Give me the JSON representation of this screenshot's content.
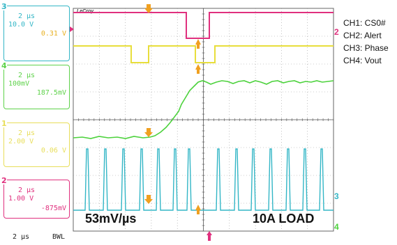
{
  "channels": {
    "ch3": {
      "num": "3",
      "time": "2 µs",
      "volts": "10.0 V",
      "offset": "0.31 V"
    },
    "ch4": {
      "num": "4",
      "time": "2 µs",
      "volts": "100mV",
      "offset": "187.5mV"
    },
    "ch1": {
      "num": "1",
      "time": "2 µs",
      "volts": "2.00 V",
      "offset": "0.06 V"
    },
    "ch2": {
      "num": "2",
      "time": "2 µs",
      "volts": "1.00 V",
      "offset": "-875mV"
    }
  },
  "timebase": "2 µs",
  "bandwidth": "BWL",
  "brand": "LeCroy",
  "legend": [
    "CH1: CS0#",
    "CH2: Alert",
    "CH3: Phase",
    "CH4: Vout"
  ],
  "annotations": {
    "slew": "53mV/µs",
    "load": "10A LOAD"
  },
  "right_markers": {
    "m2": "2",
    "m3": "3",
    "m4": "4"
  },
  "colors": {
    "ch1": "#e8de3c",
    "ch2": "#e0307e",
    "ch3": "#33b6c6",
    "ch4": "#4cd23c",
    "cursor": "#f0a020",
    "grid": "#9a9a9a"
  }
}
